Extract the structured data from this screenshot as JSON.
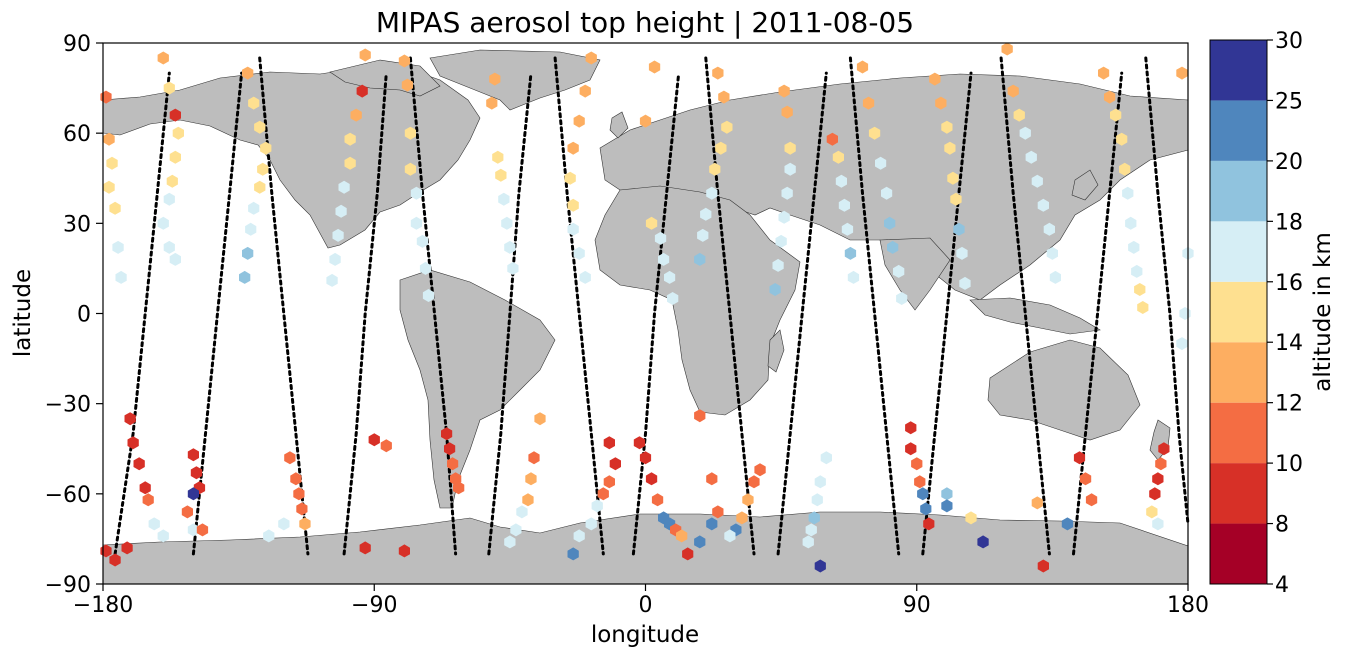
{
  "chart_data": {
    "type": "scatter",
    "title": "MIPAS aerosol top height | 2011-08-05",
    "xlabel": "longitude",
    "ylabel": "latitude",
    "xlim": [
      -180,
      180
    ],
    "ylim": [
      -90,
      90
    ],
    "xticks": [
      -180,
      -90,
      0,
      90,
      180
    ],
    "yticks": [
      -90,
      -60,
      -30,
      0,
      30,
      60,
      90
    ],
    "xtick_labels": [
      "−180",
      "−90",
      "0",
      "90",
      "180"
    ],
    "ytick_labels": [
      "−90",
      "−60",
      "−30",
      "0",
      "30",
      "60",
      "90"
    ],
    "grid": false,
    "background_map": "world coastlines, land filled grey",
    "colorbar": {
      "label": "altitude in km",
      "boundaries": [
        4,
        8,
        10,
        12,
        14,
        16,
        18,
        20,
        25,
        30
      ],
      "tick_labels": [
        "4",
        "8",
        "10",
        "12",
        "14",
        "16",
        "18",
        "20",
        "25",
        "30"
      ],
      "colors": [
        "#a50026",
        "#d73027",
        "#f46d43",
        "#fdae61",
        "#fee090",
        "#d6eef5",
        "#90c3de",
        "#4f86bd",
        "#313695"
      ]
    },
    "land_color": "#bdbdbd",
    "track_color": "#000000",
    "tracks": [
      [
        [
          -176,
          -80
        ],
        [
          -170,
          -40
        ],
        [
          -166,
          0
        ],
        [
          -162,
          40
        ],
        [
          -158,
          80
        ]
      ],
      [
        [
          -150,
          -80
        ],
        [
          -146,
          -40
        ],
        [
          -142,
          0
        ],
        [
          -138,
          40
        ],
        [
          -134,
          80
        ]
      ],
      [
        [
          -128,
          85
        ],
        [
          -124,
          40
        ],
        [
          -120,
          0
        ],
        [
          -116,
          -40
        ],
        [
          -112,
          -80
        ]
      ],
      [
        [
          -100,
          -80
        ],
        [
          -96,
          -40
        ],
        [
          -93,
          0
        ],
        [
          -89,
          40
        ],
        [
          -86,
          80
        ]
      ],
      [
        [
          -78,
          85
        ],
        [
          -74,
          40
        ],
        [
          -70,
          0
        ],
        [
          -66,
          -40
        ],
        [
          -63,
          -80
        ]
      ],
      [
        [
          -52,
          -80
        ],
        [
          -48,
          -40
        ],
        [
          -45,
          0
        ],
        [
          -42,
          40
        ],
        [
          -38,
          80
        ]
      ],
      [
        [
          -30,
          85
        ],
        [
          -26,
          40
        ],
        [
          -22,
          0
        ],
        [
          -18,
          -40
        ],
        [
          -14,
          -80
        ]
      ],
      [
        [
          -4,
          -80
        ],
        [
          0,
          -40
        ],
        [
          3,
          0
        ],
        [
          7,
          40
        ],
        [
          11,
          80
        ]
      ],
      [
        [
          20,
          85
        ],
        [
          24,
          40
        ],
        [
          28,
          0
        ],
        [
          32,
          -40
        ],
        [
          36,
          -80
        ]
      ],
      [
        [
          44,
          -80
        ],
        [
          48,
          -40
        ],
        [
          52,
          0
        ],
        [
          56,
          40
        ],
        [
          60,
          80
        ]
      ],
      [
        [
          68,
          85
        ],
        [
          72,
          40
        ],
        [
          76,
          0
        ],
        [
          80,
          -40
        ],
        [
          84,
          -80
        ]
      ],
      [
        [
          92,
          -80
        ],
        [
          96,
          -40
        ],
        [
          100,
          0
        ],
        [
          104,
          40
        ],
        [
          108,
          80
        ]
      ],
      [
        [
          118,
          85
        ],
        [
          122,
          40
        ],
        [
          126,
          0
        ],
        [
          130,
          -40
        ],
        [
          134,
          -80
        ]
      ],
      [
        [
          142,
          -80
        ],
        [
          146,
          -40
        ],
        [
          150,
          0
        ],
        [
          154,
          40
        ],
        [
          158,
          80
        ]
      ],
      [
        [
          166,
          85
        ],
        [
          170,
          40
        ],
        [
          174,
          0
        ],
        [
          177,
          -40
        ],
        [
          180,
          -70
        ]
      ]
    ],
    "points": [
      [
        -179,
        72,
        10
      ],
      [
        -178,
        58,
        13
      ],
      [
        -177,
        50,
        14
      ],
      [
        -178,
        42,
        15
      ],
      [
        -176,
        35,
        15
      ],
      [
        -175,
        22,
        16
      ],
      [
        -174,
        12,
        16
      ],
      [
        -171,
        -35,
        8
      ],
      [
        -170,
        -43,
        9
      ],
      [
        -168,
        -50,
        9
      ],
      [
        -166,
        -58,
        9
      ],
      [
        -165,
        -62,
        11
      ],
      [
        -163,
        -70,
        16
      ],
      [
        -160,
        -74,
        17
      ],
      [
        -172,
        -78,
        9
      ],
      [
        -176,
        -82,
        8
      ],
      [
        -179,
        -79,
        8
      ],
      [
        -160,
        85,
        13
      ],
      [
        -158,
        75,
        14
      ],
      [
        -156,
        66,
        9
      ],
      [
        -155,
        60,
        15
      ],
      [
        -156,
        52,
        15
      ],
      [
        -157,
        44,
        15
      ],
      [
        -158,
        38,
        16
      ],
      [
        -160,
        30,
        16
      ],
      [
        -158,
        22,
        17
      ],
      [
        -156,
        18,
        17
      ],
      [
        -150,
        -47,
        9
      ],
      [
        -149,
        -53,
        9
      ],
      [
        -148,
        -58,
        9
      ],
      [
        -150,
        -60,
        25
      ],
      [
        -152,
        -66,
        11
      ],
      [
        -150,
        -72,
        16
      ],
      [
        -147,
        -72,
        11
      ],
      [
        -132,
        80,
        13
      ],
      [
        -130,
        70,
        15
      ],
      [
        -128,
        62,
        15
      ],
      [
        -126,
        55,
        15
      ],
      [
        -127,
        48,
        15
      ],
      [
        -128,
        42,
        15
      ],
      [
        -130,
        35,
        16
      ],
      [
        -131,
        28,
        17
      ],
      [
        -132,
        20,
        18
      ],
      [
        -133,
        12,
        18
      ],
      [
        -118,
        -48,
        11
      ],
      [
        -116,
        -55,
        10
      ],
      [
        -115,
        -60,
        10
      ],
      [
        -114,
        -65,
        11
      ],
      [
        -113,
        -70,
        12
      ],
      [
        -120,
        -70,
        16
      ],
      [
        -125,
        -74,
        17
      ],
      [
        -93,
        86,
        12
      ],
      [
        -94,
        74,
        9
      ],
      [
        -96,
        66,
        13
      ],
      [
        -98,
        58,
        14
      ],
      [
        -98,
        50,
        15
      ],
      [
        -100,
        42,
        16
      ],
      [
        -101,
        34,
        16
      ],
      [
        -102,
        26,
        17
      ],
      [
        -103,
        18,
        17
      ],
      [
        -104,
        11,
        16
      ],
      [
        -93,
        -78,
        8
      ],
      [
        -90,
        -42,
        9
      ],
      [
        -86,
        -44,
        11
      ],
      [
        -80,
        -79,
        8
      ],
      [
        -80,
        84,
        13
      ],
      [
        -79,
        76,
        13
      ],
      [
        -78,
        60,
        14
      ],
      [
        -78,
        48,
        15
      ],
      [
        -76,
        40,
        16
      ],
      [
        -76,
        30,
        17
      ],
      [
        -74,
        24,
        17
      ],
      [
        -73,
        15,
        17
      ],
      [
        -72,
        6,
        16
      ],
      [
        -66,
        -40,
        9
      ],
      [
        -65,
        -45,
        9
      ],
      [
        -64,
        -50,
        10
      ],
      [
        -63,
        -55,
        11
      ],
      [
        -62,
        -58,
        10
      ],
      [
        -50,
        78,
        13
      ],
      [
        -51,
        70,
        13
      ],
      [
        -49,
        52,
        15
      ],
      [
        -48,
        46,
        15
      ],
      [
        -47,
        38,
        17
      ],
      [
        -46,
        30,
        16
      ],
      [
        -45,
        22,
        16
      ],
      [
        -44,
        15,
        17
      ],
      [
        -35,
        -35,
        12
      ],
      [
        -37,
        -48,
        11
      ],
      [
        -38,
        -55,
        12
      ],
      [
        -39,
        -62,
        13
      ],
      [
        -41,
        -66,
        16
      ],
      [
        -43,
        -72,
        16
      ],
      [
        -45,
        -76,
        17
      ],
      [
        -18,
        85,
        12
      ],
      [
        -20,
        74,
        12
      ],
      [
        -22,
        64,
        12
      ],
      [
        -24,
        55,
        13
      ],
      [
        -25,
        45,
        14
      ],
      [
        -24,
        36,
        15
      ],
      [
        -24,
        28,
        17
      ],
      [
        -22,
        20,
        17
      ],
      [
        -20,
        12,
        17
      ],
      [
        -12,
        -43,
        9
      ],
      [
        -10,
        -50,
        9
      ],
      [
        -12,
        -56,
        11
      ],
      [
        -14,
        -60,
        11
      ],
      [
        -16,
        -64,
        16
      ],
      [
        -18,
        -70,
        16
      ],
      [
        -22,
        -74,
        17
      ],
      [
        -24,
        -80,
        20
      ],
      [
        0,
        64,
        12
      ],
      [
        3,
        82,
        13
      ],
      [
        2,
        30,
        15
      ],
      [
        5,
        25,
        17
      ],
      [
        6,
        18,
        17
      ],
      [
        8,
        12,
        17
      ],
      [
        9,
        5,
        17
      ],
      [
        -2,
        -43,
        9
      ],
      [
        0,
        -48,
        9
      ],
      [
        2,
        -55,
        9
      ],
      [
        4,
        -62,
        10
      ],
      [
        6,
        -68,
        20
      ],
      [
        8,
        -70,
        20
      ],
      [
        10,
        -72,
        10
      ],
      [
        12,
        -74,
        12
      ],
      [
        14,
        -80,
        9
      ],
      [
        24,
        80,
        13
      ],
      [
        26,
        72,
        13
      ],
      [
        27,
        62,
        14
      ],
      [
        25,
        55,
        15
      ],
      [
        23,
        48,
        15
      ],
      [
        22,
        40,
        16
      ],
      [
        20,
        33,
        17
      ],
      [
        19,
        26,
        17
      ],
      [
        18,
        18,
        18
      ],
      [
        18,
        -34,
        11
      ],
      [
        22,
        -55,
        11
      ],
      [
        24,
        -66,
        11
      ],
      [
        22,
        -70,
        20
      ],
      [
        18,
        -76,
        20
      ],
      [
        46,
        74,
        13
      ],
      [
        47,
        67,
        13
      ],
      [
        48,
        55,
        15
      ],
      [
        48,
        48,
        16
      ],
      [
        47,
        40,
        16
      ],
      [
        46,
        32,
        17
      ],
      [
        45,
        24,
        17
      ],
      [
        44,
        16,
        17
      ],
      [
        43,
        8,
        18
      ],
      [
        38,
        -52,
        11
      ],
      [
        36,
        -56,
        11
      ],
      [
        34,
        -62,
        12
      ],
      [
        32,
        -68,
        12
      ],
      [
        30,
        -72,
        20
      ],
      [
        28,
        -74,
        16
      ],
      [
        62,
        58,
        11
      ],
      [
        64,
        52,
        15
      ],
      [
        65,
        44,
        16
      ],
      [
        66,
        36,
        17
      ],
      [
        67,
        28,
        17
      ],
      [
        68,
        20,
        18
      ],
      [
        69,
        12,
        17
      ],
      [
        60,
        -48,
        16
      ],
      [
        58,
        -56,
        17
      ],
      [
        57,
        -62,
        16
      ],
      [
        56,
        -68,
        18
      ],
      [
        55,
        -72,
        17
      ],
      [
        54,
        -76,
        16
      ],
      [
        58,
        -84,
        25
      ],
      [
        72,
        82,
        12
      ],
      [
        74,
        70,
        13
      ],
      [
        76,
        60,
        15
      ],
      [
        78,
        50,
        16
      ],
      [
        80,
        40,
        17
      ],
      [
        81,
        30,
        18
      ],
      [
        82,
        22,
        18
      ],
      [
        84,
        14,
        17
      ],
      [
        85,
        5,
        17
      ],
      [
        88,
        -38,
        9
      ],
      [
        88,
        -45,
        9
      ],
      [
        90,
        -50,
        10
      ],
      [
        91,
        -56,
        11
      ],
      [
        92,
        -60,
        20
      ],
      [
        93,
        -65,
        20
      ],
      [
        94,
        -70,
        8
      ],
      [
        96,
        78,
        12
      ],
      [
        98,
        70,
        13
      ],
      [
        100,
        62,
        15
      ],
      [
        101,
        55,
        15
      ],
      [
        102,
        45,
        15
      ],
      [
        103,
        38,
        15
      ],
      [
        104,
        28,
        18
      ],
      [
        105,
        20,
        17
      ],
      [
        106,
        10,
        17
      ],
      [
        100,
        -60,
        18
      ],
      [
        100,
        -64,
        20
      ],
      [
        108,
        -68,
        14
      ],
      [
        112,
        -76,
        25
      ],
      [
        132,
        -84,
        8
      ],
      [
        120,
        88,
        12
      ],
      [
        122,
        74,
        13
      ],
      [
        124,
        66,
        14
      ],
      [
        126,
        60,
        16
      ],
      [
        128,
        52,
        16
      ],
      [
        130,
        44,
        16
      ],
      [
        132,
        36,
        17
      ],
      [
        134,
        28,
        17
      ],
      [
        135,
        20,
        17
      ],
      [
        136,
        12,
        17
      ],
      [
        130,
        -63,
        12
      ],
      [
        140,
        -70,
        20
      ],
      [
        144,
        -48,
        9
      ],
      [
        146,
        -55,
        11
      ],
      [
        148,
        -62,
        11
      ],
      [
        152,
        80,
        12
      ],
      [
        154,
        72,
        13
      ],
      [
        156,
        66,
        15
      ],
      [
        158,
        58,
        15
      ],
      [
        159,
        48,
        15
      ],
      [
        160,
        40,
        16
      ],
      [
        161,
        30,
        16
      ],
      [
        162,
        22,
        17
      ],
      [
        163,
        14,
        17
      ],
      [
        164,
        8,
        15
      ],
      [
        165,
        2,
        15
      ],
      [
        172,
        -45,
        9
      ],
      [
        171,
        -50,
        10
      ],
      [
        170,
        -55,
        9
      ],
      [
        169,
        -60,
        9
      ],
      [
        168,
        -66,
        14
      ],
      [
        170,
        -70,
        16
      ],
      [
        178,
        80,
        12
      ],
      [
        180,
        20,
        17
      ],
      [
        179,
        0,
        16
      ],
      [
        178,
        -10,
        16
      ]
    ]
  }
}
